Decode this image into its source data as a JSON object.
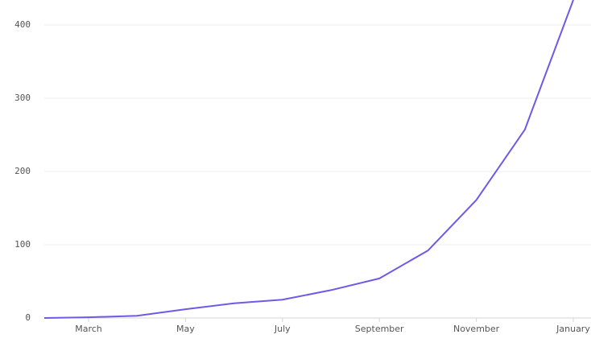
{
  "chart_data": {
    "type": "line",
    "categories": [
      null,
      "March",
      null,
      "May",
      null,
      "July",
      null,
      "September",
      null,
      "November",
      null,
      "January"
    ],
    "series": [
      {
        "color": "#6e5ae6",
        "values": [
          0,
          1,
          3,
          12,
          20,
          25,
          38,
          54,
          92,
          161,
          257,
          434
        ]
      }
    ],
    "ylim": [
      0,
      434
    ],
    "yticks": [
      0,
      100,
      200,
      300,
      400
    ],
    "grid": true
  }
}
